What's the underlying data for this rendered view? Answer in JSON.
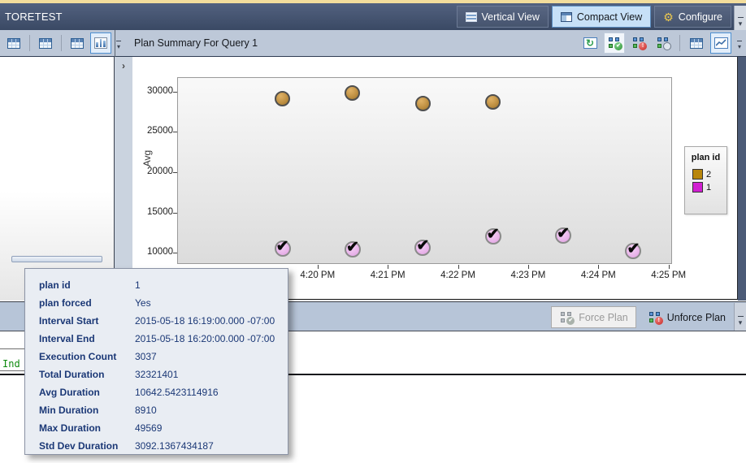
{
  "title_bar": {
    "title": "TORETEST",
    "vertical_view_label": "Vertical View",
    "compact_view_label": "Compact View",
    "configure_label": "Configure"
  },
  "toolbar": {
    "panel_title": "Plan Summary For Query 1"
  },
  "icons": {
    "expander_chevron": "›",
    "overflow_arrow": "▾",
    "gear": "⚙",
    "refresh": "↻",
    "check_badge": "✔",
    "forced_check": "✔"
  },
  "chart_data": {
    "type": "scatter",
    "title": "Plan Summary For Query 1",
    "xlabel": "",
    "ylabel": "Avg",
    "y_ticks": [
      10000,
      15000,
      20000,
      25000,
      30000
    ],
    "ylim": [
      8600,
      31800
    ],
    "x_ticks": [
      {
        "label": "4:20 PM",
        "minutes": 2
      },
      {
        "label": "4:21 PM",
        "minutes": 3
      },
      {
        "label": "4:22 PM",
        "minutes": 4
      },
      {
        "label": "4:23 PM",
        "minutes": 5
      },
      {
        "label": "4:24 PM",
        "minutes": 6
      },
      {
        "label": "4:25 PM",
        "minutes": 7
      }
    ],
    "xlim_minutes": [
      0,
      7.05
    ],
    "x_axis_origin_time": "4:18 PM",
    "grid": false,
    "legend": {
      "title": "plan id",
      "position": "right",
      "entries": [
        {
          "label": "2",
          "color": "#b8860b"
        },
        {
          "label": "1",
          "color": "#d11fd1"
        }
      ]
    },
    "series": [
      {
        "name": "2",
        "marker": "circle",
        "color": "#c9984e",
        "points": [
          {
            "time": "4:19:30 PM",
            "minutes": 1.5,
            "avg": 29100
          },
          {
            "time": "4:20:30 PM",
            "minutes": 2.5,
            "avg": 29800
          },
          {
            "time": "4:21:30 PM",
            "minutes": 3.5,
            "avg": 28500
          },
          {
            "time": "4:22:30 PM",
            "minutes": 4.5,
            "avg": 28700
          }
        ]
      },
      {
        "name": "1",
        "marker": "check-circle (forced plan)",
        "color": "#e8b2e9",
        "points": [
          {
            "time": "4:19:30 PM",
            "minutes": 1.5,
            "avg": 10500
          },
          {
            "time": "4:20:30 PM",
            "minutes": 2.5,
            "avg": 10400
          },
          {
            "time": "4:21:30 PM",
            "minutes": 3.5,
            "avg": 10600
          },
          {
            "time": "4:22:30 PM",
            "minutes": 4.5,
            "avg": 12000
          },
          {
            "time": "4:23:30 PM",
            "minutes": 5.5,
            "avg": 12100
          },
          {
            "time": "4:24:30 PM",
            "minutes": 6.5,
            "avg": 10200
          }
        ]
      }
    ]
  },
  "tooltip": {
    "rows": [
      {
        "label": "plan id",
        "value": "1"
      },
      {
        "label": "plan forced",
        "value": "Yes"
      },
      {
        "label": "Interval Start",
        "value": "2015-05-18 16:19:00.000 -07:00"
      },
      {
        "label": "Interval End",
        "value": "2015-05-18 16:20:00.000 -07:00"
      },
      {
        "label": "Execution Count",
        "value": "3037"
      },
      {
        "label": "Total Duration",
        "value": "32321401"
      },
      {
        "label": "Avg Duration",
        "value": "10642.5423114916"
      },
      {
        "label": "Min Duration",
        "value": "8910"
      },
      {
        "label": "Max Duration",
        "value": "49569"
      },
      {
        "label": "Std Dev Duration",
        "value": "3092.1367434187"
      }
    ]
  },
  "action_bar": {
    "force_plan_label": "Force Plan",
    "unforce_plan_label": "Unforce Plan"
  },
  "editor": {
    "visible_text": "Ind"
  },
  "colors": {
    "accent_selection": "#4f91d2",
    "toolbar_bg": "#bdc8d8",
    "title_bar_top": "#52617f",
    "title_bar_bottom": "#3a4964",
    "tooltip_text": "#1b3876",
    "plan2_marker": "#c9984e",
    "plan1_marker": "#e8b2e9",
    "sql_text_green": "#0d8a0d"
  }
}
